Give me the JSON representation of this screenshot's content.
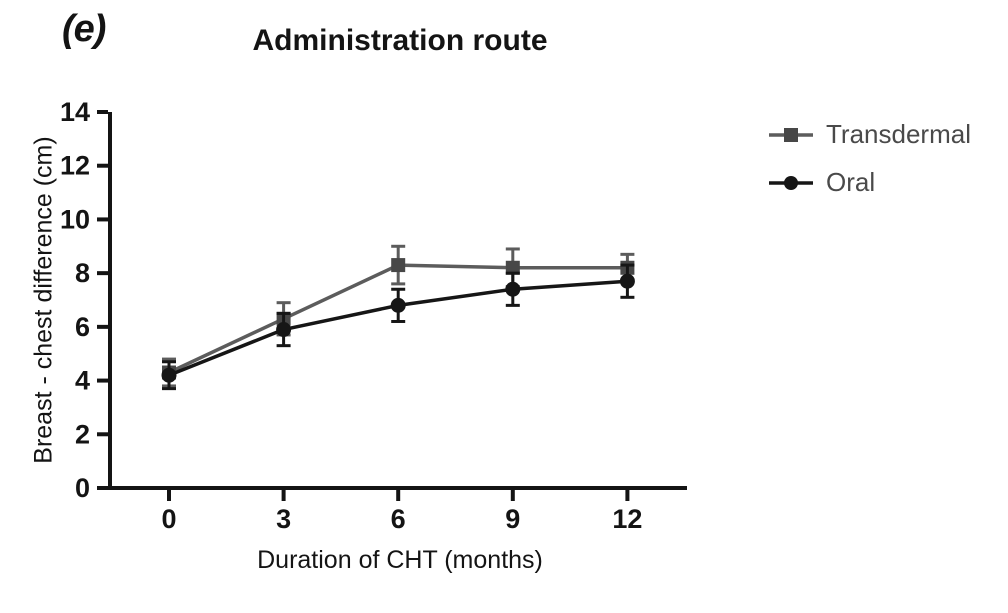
{
  "page": {
    "panel_label": "(e)",
    "background_color": "#ffffff"
  },
  "chart_data": {
    "type": "line",
    "title": "Administration route",
    "xlabel": "Duration of CHT (months)",
    "ylabel": "Breast - chest difference (cm)",
    "x": [
      0,
      3,
      6,
      9,
      12
    ],
    "xticks": [
      0,
      3,
      6,
      9,
      12
    ],
    "yticks": [
      0,
      2,
      4,
      6,
      8,
      10,
      12,
      14
    ],
    "xlim": [
      0,
      12
    ],
    "ylim": [
      0,
      14
    ],
    "grid": false,
    "error_bars": true,
    "legend_position": "right",
    "axis_color": "#141414",
    "series": [
      {
        "name": "Transdermal",
        "marker": "square",
        "color": "#5c5c5c",
        "marker_color": "#474747",
        "values": [
          4.3,
          6.3,
          8.3,
          8.2,
          8.2
        ],
        "errors": [
          0.5,
          0.6,
          0.7,
          0.7,
          0.5
        ]
      },
      {
        "name": "Oral",
        "marker": "circle",
        "color": "#161616",
        "marker_color": "#161616",
        "values": [
          4.2,
          5.9,
          6.8,
          7.4,
          7.7
        ],
        "errors": [
          0.5,
          0.6,
          0.6,
          0.6,
          0.6
        ]
      }
    ]
  }
}
